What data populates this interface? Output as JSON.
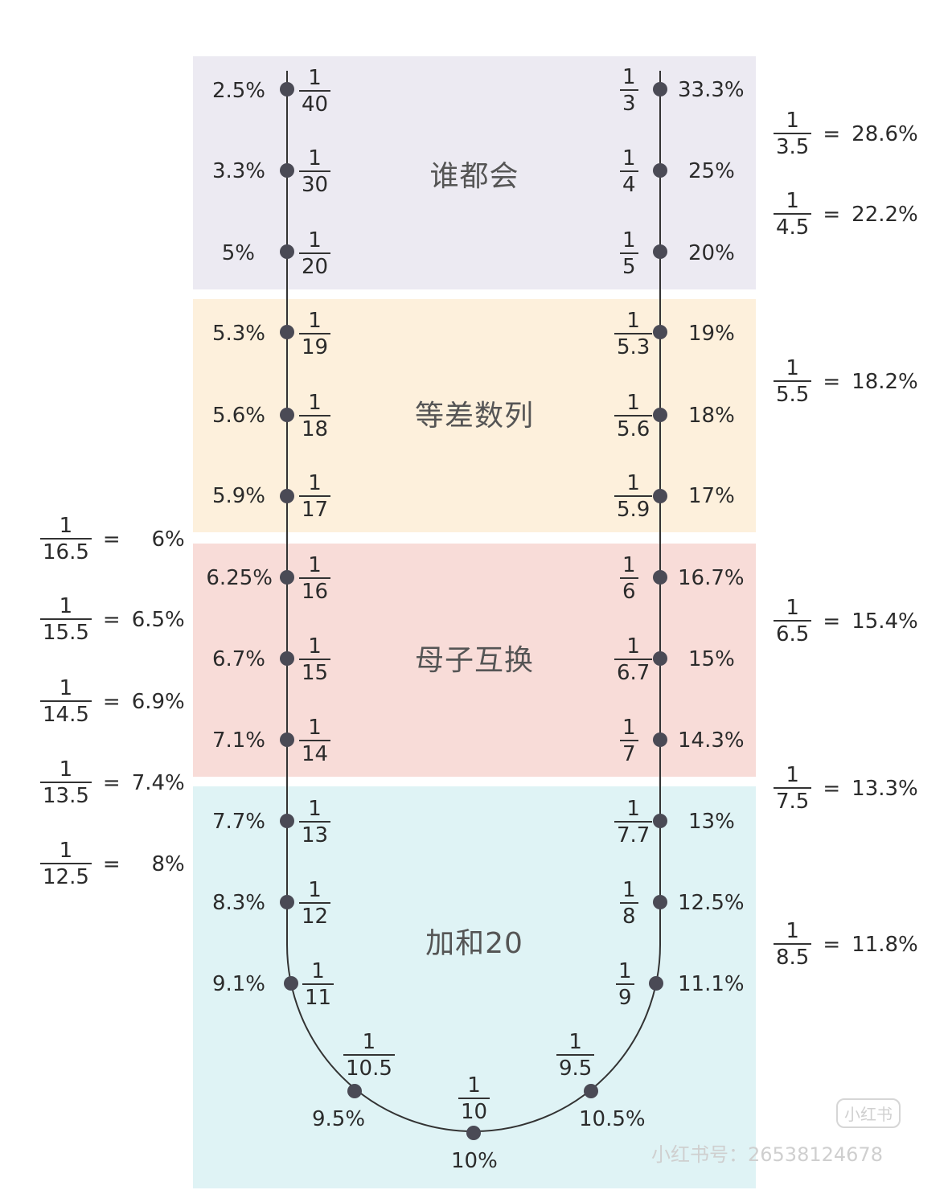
{
  "sections": [
    {
      "label": "谁都会",
      "color": "#eceaf2"
    },
    {
      "label": "等差数列",
      "color": "#fdf0dc"
    },
    {
      "label": "母子互换",
      "color": "#f8dcd8"
    },
    {
      "label": "加和20",
      "color": "#dff3f5"
    }
  ],
  "left_column": [
    {
      "pct": "2.5%",
      "num": "1",
      "den": "40"
    },
    {
      "pct": "3.3%",
      "num": "1",
      "den": "30"
    },
    {
      "pct": "5%",
      "num": "1",
      "den": "20"
    },
    {
      "pct": "5.3%",
      "num": "1",
      "den": "19"
    },
    {
      "pct": "5.6%",
      "num": "1",
      "den": "18"
    },
    {
      "pct": "5.9%",
      "num": "1",
      "den": "17"
    },
    {
      "pct": "6.25%",
      "num": "1",
      "den": "16"
    },
    {
      "pct": "6.7%",
      "num": "1",
      "den": "15"
    },
    {
      "pct": "7.1%",
      "num": "1",
      "den": "14"
    },
    {
      "pct": "7.7%",
      "num": "1",
      "den": "13"
    },
    {
      "pct": "8.3%",
      "num": "1",
      "den": "12"
    },
    {
      "pct": "9.1%",
      "num": "1",
      "den": "11"
    }
  ],
  "right_column": [
    {
      "pct": "33.3%",
      "num": "1",
      "den": "3"
    },
    {
      "pct": "25%",
      "num": "1",
      "den": "4"
    },
    {
      "pct": "20%",
      "num": "1",
      "den": "5"
    },
    {
      "pct": "19%",
      "num": "1",
      "den": "5.3"
    },
    {
      "pct": "18%",
      "num": "1",
      "den": "5.6"
    },
    {
      "pct": "17%",
      "num": "1",
      "den": "5.9"
    },
    {
      "pct": "16.7%",
      "num": "1",
      "den": "6"
    },
    {
      "pct": "15%",
      "num": "1",
      "den": "6.7"
    },
    {
      "pct": "14.3%",
      "num": "1",
      "den": "7"
    },
    {
      "pct": "13%",
      "num": "1",
      "den": "7.7"
    },
    {
      "pct": "12.5%",
      "num": "1",
      "den": "8"
    },
    {
      "pct": "11.1%",
      "num": "1",
      "den": "9"
    }
  ],
  "bottom_arc": [
    {
      "pct": "9.5%",
      "num": "1",
      "den": "10.5"
    },
    {
      "pct": "10%",
      "num": "1",
      "den": "10"
    },
    {
      "pct": "10.5%",
      "num": "1",
      "den": "9.5"
    }
  ],
  "left_extras": [
    {
      "num": "1",
      "den": "16.5",
      "eq": "=",
      "pct": "6%"
    },
    {
      "num": "1",
      "den": "15.5",
      "eq": "=",
      "pct": "6.5%"
    },
    {
      "num": "1",
      "den": "14.5",
      "eq": "=",
      "pct": "6.9%"
    },
    {
      "num": "1",
      "den": "13.5",
      "eq": "=",
      "pct": "7.4%"
    },
    {
      "num": "1",
      "den": "12.5",
      "eq": "=",
      "pct": "8%"
    }
  ],
  "right_extras": [
    {
      "num": "1",
      "den": "3.5",
      "eq": "=",
      "pct": "28.6%"
    },
    {
      "num": "1",
      "den": "4.5",
      "eq": "=",
      "pct": "22.2%"
    },
    {
      "num": "1",
      "den": "5.5",
      "eq": "=",
      "pct": "18.2%"
    },
    {
      "num": "1",
      "den": "6.5",
      "eq": "=",
      "pct": "15.4%"
    },
    {
      "num": "1",
      "den": "7.5",
      "eq": "=",
      "pct": "13.3%"
    },
    {
      "num": "1",
      "den": "8.5",
      "eq": "=",
      "pct": "11.8%"
    }
  ],
  "watermark": {
    "logo": "小红书",
    "text": "小红书号：26538124678"
  },
  "colors": {
    "line": "#333333",
    "dot": "#4a4a55"
  }
}
